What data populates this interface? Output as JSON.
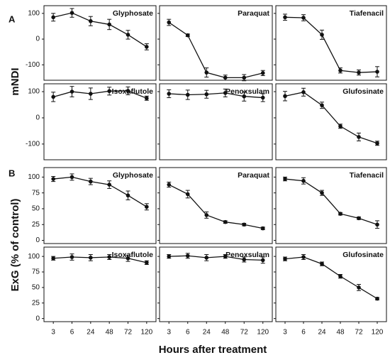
{
  "panel_labels": [
    "A",
    "B"
  ],
  "y_labels": [
    "mNDI",
    "ExG (% of control)"
  ],
  "x_label": "Hours after treatment",
  "chart_data": [
    {
      "type": "line",
      "title": "Glyphosate",
      "categories": [
        "3",
        "6",
        "24",
        "48",
        "72",
        "120"
      ],
      "values": [
        85,
        102,
        70,
        57,
        17,
        -30
      ],
      "errors": [
        15,
        17,
        18,
        20,
        17,
        12
      ],
      "ylim": [
        -160,
        130
      ],
      "yticks": [
        -100,
        0,
        100
      ],
      "color": "#111111"
    },
    {
      "type": "line",
      "title": "Paraquat",
      "categories": [
        "3",
        "6",
        "24",
        "48",
        "72",
        "120"
      ],
      "values": [
        65,
        15,
        -130,
        -150,
        -150,
        -132
      ],
      "errors": [
        12,
        5,
        18,
        10,
        12,
        10
      ],
      "ylim": [
        -160,
        130
      ],
      "yticks": [
        -100,
        0,
        100
      ],
      "color": "#111111"
    },
    {
      "type": "line",
      "title": "Tiafenacil",
      "categories": [
        "3",
        "6",
        "24",
        "48",
        "72",
        "120"
      ],
      "values": [
        85,
        83,
        17,
        -122,
        -130,
        -127
      ],
      "errors": [
        12,
        12,
        18,
        10,
        10,
        20
      ],
      "ylim": [
        -160,
        130
      ],
      "yticks": [
        -100,
        0,
        100
      ],
      "color": "#111111"
    },
    {
      "type": "line",
      "title": "Isoxaflutole",
      "categories": [
        "3",
        "6",
        "24",
        "48",
        "72",
        "120"
      ],
      "values": [
        80,
        100,
        92,
        102,
        103,
        75
      ],
      "errors": [
        18,
        20,
        22,
        15,
        15,
        8
      ],
      "ylim": [
        -160,
        130
      ],
      "yticks": [
        -100,
        0,
        100
      ],
      "color": "#111111"
    },
    {
      "type": "line",
      "title": "Penoxsulam",
      "categories": [
        "3",
        "6",
        "24",
        "48",
        "72",
        "120"
      ],
      "values": [
        92,
        88,
        90,
        95,
        82,
        77
      ],
      "errors": [
        15,
        18,
        15,
        15,
        18,
        15
      ],
      "ylim": [
        -160,
        130
      ],
      "yticks": [
        -100,
        0,
        100
      ],
      "color": "#111111"
    },
    {
      "type": "line",
      "title": "Glufosinate",
      "categories": [
        "3",
        "6",
        "24",
        "48",
        "72",
        "120"
      ],
      "values": [
        83,
        98,
        48,
        -32,
        -73,
        -97
      ],
      "errors": [
        18,
        15,
        12,
        8,
        15,
        8
      ],
      "ylim": [
        -160,
        130
      ],
      "yticks": [
        -100,
        0,
        100
      ],
      "color": "#111111"
    },
    {
      "type": "line",
      "title": "Glyphosate",
      "categories": [
        "3",
        "6",
        "24",
        "48",
        "72",
        "120"
      ],
      "values": [
        97,
        100,
        93,
        88,
        71,
        53
      ],
      "errors": [
        4,
        5,
        5,
        6,
        7,
        5
      ],
      "ylim": [
        -5,
        115
      ],
      "yticks": [
        0,
        25,
        50,
        75,
        100
      ],
      "color": "#111111"
    },
    {
      "type": "line",
      "title": "Paraquat",
      "categories": [
        "3",
        "6",
        "24",
        "48",
        "72",
        "120"
      ],
      "values": [
        88,
        73,
        40,
        29,
        25,
        19
      ],
      "errors": [
        4,
        6,
        5,
        2,
        2,
        2
      ],
      "ylim": [
        -5,
        115
      ],
      "yticks": [
        0,
        25,
        50,
        75,
        100
      ],
      "color": "#111111"
    },
    {
      "type": "line",
      "title": "Tiafenacil",
      "categories": [
        "3",
        "6",
        "24",
        "48",
        "72",
        "120"
      ],
      "values": [
        97,
        94,
        75,
        42,
        35,
        25
      ],
      "errors": [
        3,
        5,
        4,
        2,
        2,
        6
      ],
      "ylim": [
        -5,
        115
      ],
      "yticks": [
        0,
        25,
        50,
        75,
        100
      ],
      "color": "#111111"
    },
    {
      "type": "line",
      "title": "Isoxaflutole",
      "categories": [
        "3",
        "6",
        "24",
        "48",
        "72",
        "120"
      ],
      "values": [
        97,
        99,
        98,
        99,
        97,
        90
      ],
      "errors": [
        3,
        5,
        5,
        4,
        5,
        3
      ],
      "ylim": [
        -5,
        115
      ],
      "yticks": [
        0,
        25,
        50,
        75,
        100
      ],
      "color": "#111111"
    },
    {
      "type": "line",
      "title": "Penoxsulam",
      "categories": [
        "3",
        "6",
        "24",
        "48",
        "72",
        "120"
      ],
      "values": [
        100,
        101,
        98,
        100,
        95,
        94
      ],
      "errors": [
        3,
        4,
        5,
        3,
        4,
        5
      ],
      "ylim": [
        -5,
        115
      ],
      "yticks": [
        0,
        25,
        50,
        75,
        100
      ],
      "color": "#111111"
    },
    {
      "type": "line",
      "title": "Glufosinate",
      "categories": [
        "3",
        "6",
        "24",
        "48",
        "72",
        "120"
      ],
      "values": [
        96,
        99,
        88,
        68,
        50,
        32
      ],
      "errors": [
        3,
        4,
        3,
        3,
        5,
        2
      ],
      "ylim": [
        -5,
        115
      ],
      "yticks": [
        0,
        25,
        50,
        75,
        100
      ],
      "color": "#111111"
    }
  ]
}
